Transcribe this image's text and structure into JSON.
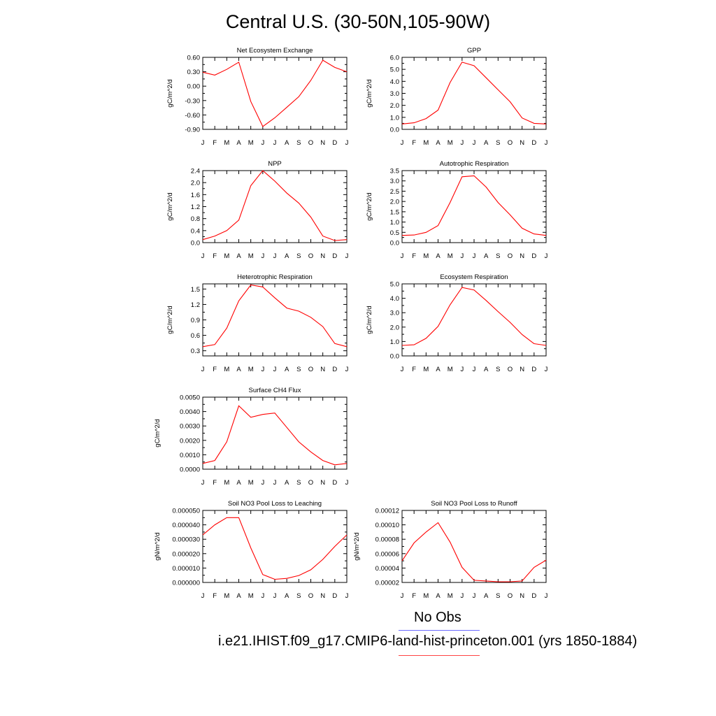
{
  "page": {
    "title": "Central U.S. (30-50N,105-90W)"
  },
  "legend": {
    "obs_label": "No Obs",
    "obs_color": "#6b6bff",
    "model_label": "i.e21.IHIST.f09_g17.CMIP6-land-hist-princeton.001 (yrs 1850-1884)",
    "model_color": "#ff4444"
  },
  "chart_data": [
    {
      "type": "line",
      "title": "Net Ecosystem Exchange",
      "ylabel": "gC/m^2/d",
      "categories": [
        "J",
        "F",
        "M",
        "A",
        "M",
        "J",
        "J",
        "A",
        "S",
        "O",
        "N",
        "D",
        "J"
      ],
      "ylim": [
        -0.9,
        0.6
      ],
      "yticks": [
        "0.60",
        "0.30",
        "0.00",
        "-0.30",
        "-0.60",
        "-0.90"
      ],
      "series": [
        {
          "values": [
            0.29,
            0.23,
            0.35,
            0.5,
            -0.32,
            -0.84,
            -0.66,
            -0.44,
            -0.22,
            0.12,
            0.54,
            0.39,
            0.3
          ],
          "color": "#ff0000"
        }
      ]
    },
    {
      "type": "line",
      "title": "GPP",
      "ylabel": "gC/m^2/d",
      "categories": [
        "J",
        "F",
        "M",
        "A",
        "M",
        "J",
        "J",
        "A",
        "S",
        "O",
        "N",
        "D",
        "J"
      ],
      "ylim": [
        0,
        6
      ],
      "yticks": [
        "6.0",
        "5.0",
        "4.0",
        "3.0",
        "2.0",
        "1.0",
        "0.0"
      ],
      "series": [
        {
          "values": [
            0.45,
            0.55,
            0.9,
            1.6,
            3.9,
            5.6,
            5.3,
            4.3,
            3.3,
            2.3,
            0.95,
            0.5,
            0.45
          ],
          "color": "#ff0000"
        }
      ]
    },
    {
      "type": "line",
      "title": "NPP",
      "ylabel": "gC/m^2/d",
      "categories": [
        "J",
        "F",
        "M",
        "A",
        "M",
        "J",
        "J",
        "A",
        "S",
        "O",
        "N",
        "D",
        "J"
      ],
      "ylim": [
        0,
        2.4
      ],
      "yticks": [
        "2.4",
        "2.0",
        "1.6",
        "1.2",
        "0.8",
        "0.4",
        "0.0"
      ],
      "series": [
        {
          "values": [
            0.1,
            0.22,
            0.4,
            0.75,
            1.9,
            2.4,
            2.05,
            1.65,
            1.32,
            0.85,
            0.22,
            0.07,
            0.1
          ],
          "color": "#ff0000"
        }
      ]
    },
    {
      "type": "line",
      "title": "Autotrophic Respiration",
      "ylabel": "gC/m^2/d",
      "categories": [
        "J",
        "F",
        "M",
        "A",
        "M",
        "J",
        "J",
        "A",
        "S",
        "O",
        "N",
        "D",
        "J"
      ],
      "ylim": [
        0,
        3.5
      ],
      "yticks": [
        "3.5",
        "3.0",
        "2.5",
        "2.0",
        "1.5",
        "1.0",
        "0.5",
        "0.0"
      ],
      "series": [
        {
          "values": [
            0.35,
            0.37,
            0.5,
            0.83,
            1.95,
            3.2,
            3.25,
            2.7,
            1.95,
            1.35,
            0.7,
            0.42,
            0.35
          ],
          "color": "#ff0000"
        }
      ]
    },
    {
      "type": "line",
      "title": "Heterotrophic Respiration",
      "ylabel": "gC/m^2/d",
      "categories": [
        "J",
        "F",
        "M",
        "A",
        "M",
        "J",
        "J",
        "A",
        "S",
        "O",
        "N",
        "D",
        "J"
      ],
      "ylim": [
        0.2,
        1.6
      ],
      "yticks": [
        "1.5",
        "1.2",
        "0.9",
        "0.6",
        "0.3"
      ],
      "ytickvalues": [
        1.5,
        1.2,
        0.9,
        0.6,
        0.3
      ],
      "series": [
        {
          "values": [
            0.38,
            0.42,
            0.74,
            1.27,
            1.58,
            1.54,
            1.33,
            1.13,
            1.07,
            0.95,
            0.77,
            0.44,
            0.38
          ],
          "color": "#ff0000"
        }
      ]
    },
    {
      "type": "line",
      "title": "Ecosystem Respiration",
      "ylabel": "gC/m^2/d",
      "categories": [
        "J",
        "F",
        "M",
        "A",
        "M",
        "J",
        "J",
        "A",
        "S",
        "O",
        "N",
        "D",
        "J"
      ],
      "ylim": [
        0,
        5
      ],
      "yticks": [
        "5.0",
        "4.0",
        "3.0",
        "2.0",
        "1.0",
        "0.0"
      ],
      "series": [
        {
          "values": [
            0.73,
            0.77,
            1.22,
            2.05,
            3.55,
            4.75,
            4.58,
            3.85,
            3.08,
            2.33,
            1.48,
            0.85,
            0.73
          ],
          "color": "#ff0000"
        }
      ]
    },
    {
      "type": "line",
      "title": "Surface CH4 Flux",
      "ylabel": "gC/m^2/d",
      "categories": [
        "J",
        "F",
        "M",
        "A",
        "M",
        "J",
        "J",
        "A",
        "S",
        "O",
        "N",
        "D",
        "J"
      ],
      "ylim": [
        0,
        0.005
      ],
      "yticks": [
        "0.0050",
        "0.0040",
        "0.0030",
        "0.0020",
        "0.0010",
        "0.0000"
      ],
      "series": [
        {
          "values": [
            0.0004,
            0.0006,
            0.0019,
            0.0044,
            0.0036,
            0.0038,
            0.0039,
            0.0029,
            0.0019,
            0.0012,
            0.0006,
            0.0003,
            0.0004
          ],
          "color": "#ff0000"
        }
      ]
    },
    {
      "type": "line",
      "title": "Soil NO3 Pool Loss to Leaching",
      "ylabel": "gN/m^2/d",
      "categories": [
        "J",
        "F",
        "M",
        "A",
        "M",
        "J",
        "J",
        "A",
        "S",
        "O",
        "N",
        "D",
        "J"
      ],
      "ylim": [
        0,
        5e-05
      ],
      "yticks": [
        "0.000050",
        "0.000040",
        "0.000030",
        "0.000020",
        "0.000010",
        "0.000000"
      ],
      "series": [
        {
          "values": [
            3.3e-05,
            4e-05,
            4.5e-05,
            4.5e-05,
            2.4e-05,
            5.5e-06,
            2.2e-06,
            2.8e-06,
            4.8e-06,
            8.8e-06,
            1.6e-05,
            2.5e-05,
            3.3e-05
          ],
          "color": "#ff0000"
        }
      ]
    },
    {
      "type": "line",
      "title": "Soil NO3 Pool Loss to Runoff",
      "ylabel": "gN/m^2/d",
      "categories": [
        "J",
        "F",
        "M",
        "A",
        "M",
        "J",
        "J",
        "A",
        "S",
        "O",
        "N",
        "D",
        "J"
      ],
      "ylim": [
        2e-05,
        0.00012
      ],
      "yticks": [
        "0.00012",
        "0.00010",
        "0.00008",
        "0.00006",
        "0.00004",
        "0.00002"
      ],
      "series": [
        {
          "values": [
            5e-05,
            7.5e-05,
            9e-05,
            0.000103,
            7.6e-05,
            4.1e-05,
            2.3e-05,
            2.2e-05,
            2.1e-05,
            2.1e-05,
            2.2e-05,
            4.1e-05,
            5.1e-05
          ],
          "color": "#ff0000"
        }
      ]
    }
  ]
}
